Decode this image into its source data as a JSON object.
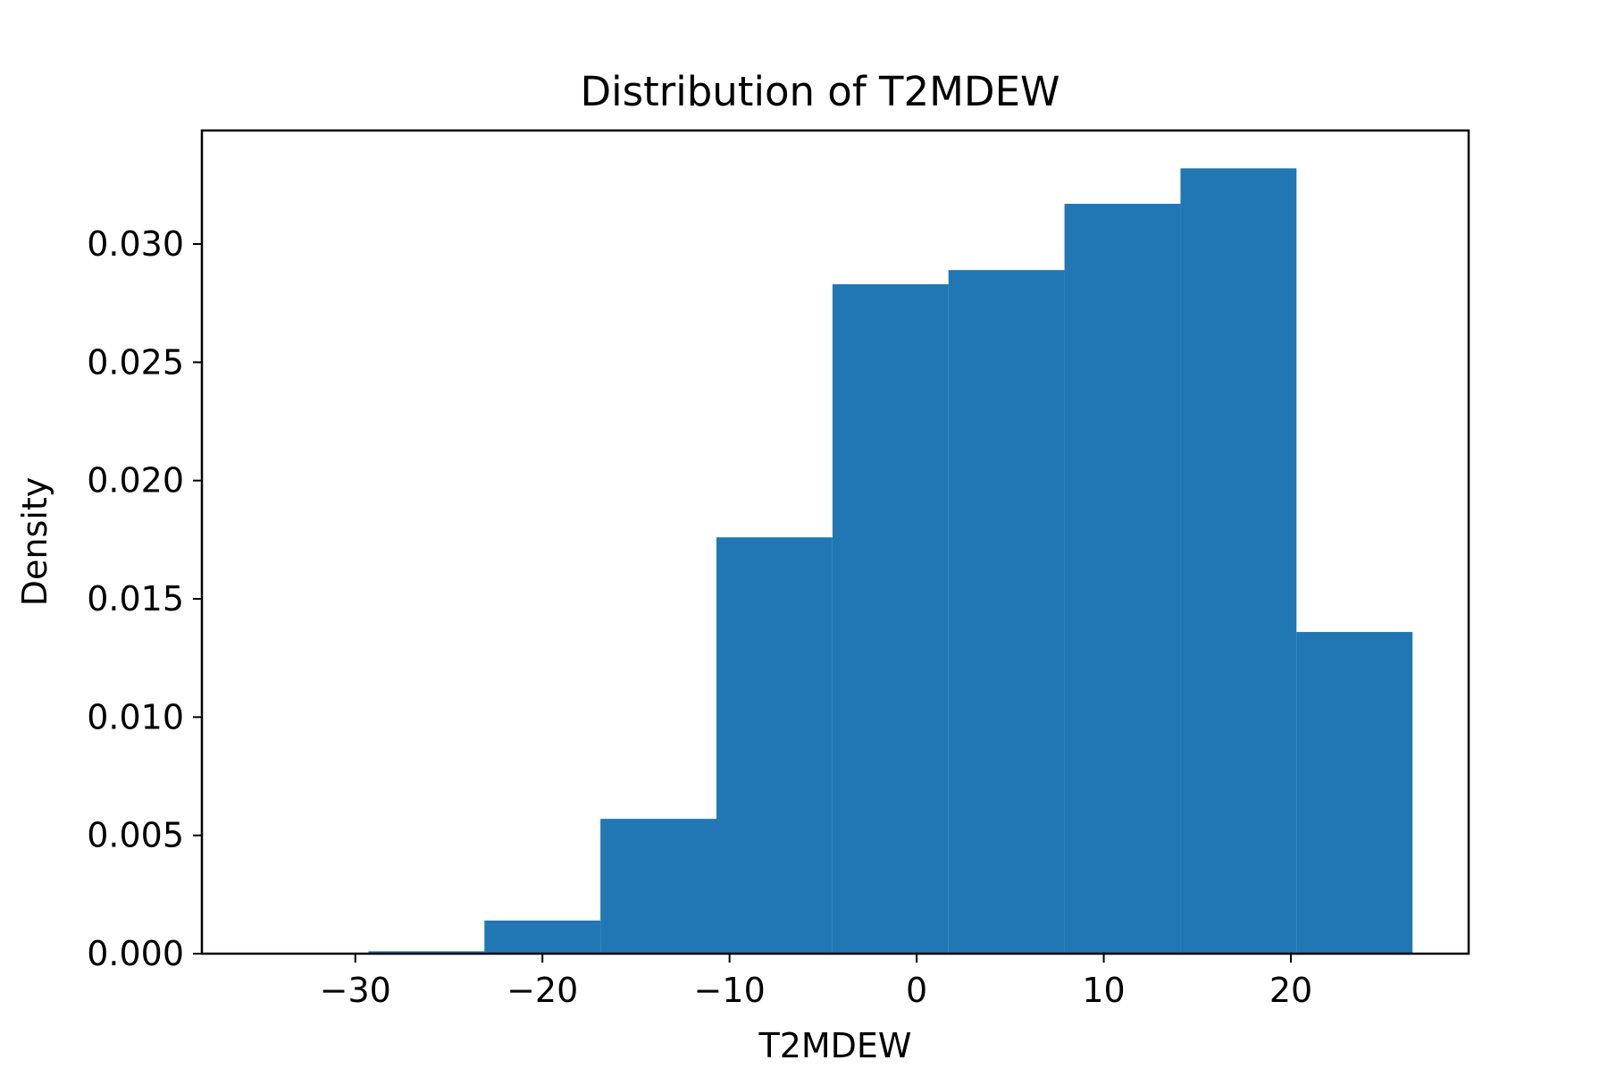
{
  "chart_data": {
    "type": "bar",
    "title": "Distribution of T2MDEW",
    "xlabel": "T2MDEW",
    "ylabel": "Density",
    "xlim": [
      -38.2,
      29.5
    ],
    "ylim": [
      0,
      0.0348
    ],
    "bin_edges": [
      -29.3,
      -23.1,
      -16.9,
      -10.7,
      -4.5,
      1.7,
      7.9,
      14.1,
      20.3,
      26.5
    ],
    "values": [
      0.0001,
      0.0014,
      0.0057,
      0.0176,
      0.0283,
      0.0289,
      0.0317,
      0.0332,
      0.0136
    ],
    "xticks": [
      -30,
      -20,
      -10,
      0,
      10,
      20
    ],
    "xtick_labels": [
      "−30",
      "−20",
      "−10",
      "0",
      "10",
      "20"
    ],
    "yticks": [
      0,
      0.005,
      0.01,
      0.015,
      0.02,
      0.025,
      0.03
    ],
    "ytick_labels": [
      "0.000",
      "0.005",
      "0.010",
      "0.015",
      "0.020",
      "0.025",
      "0.030"
    ],
    "bar_color": "#2077b4",
    "grid": false,
    "legend": "none"
  }
}
